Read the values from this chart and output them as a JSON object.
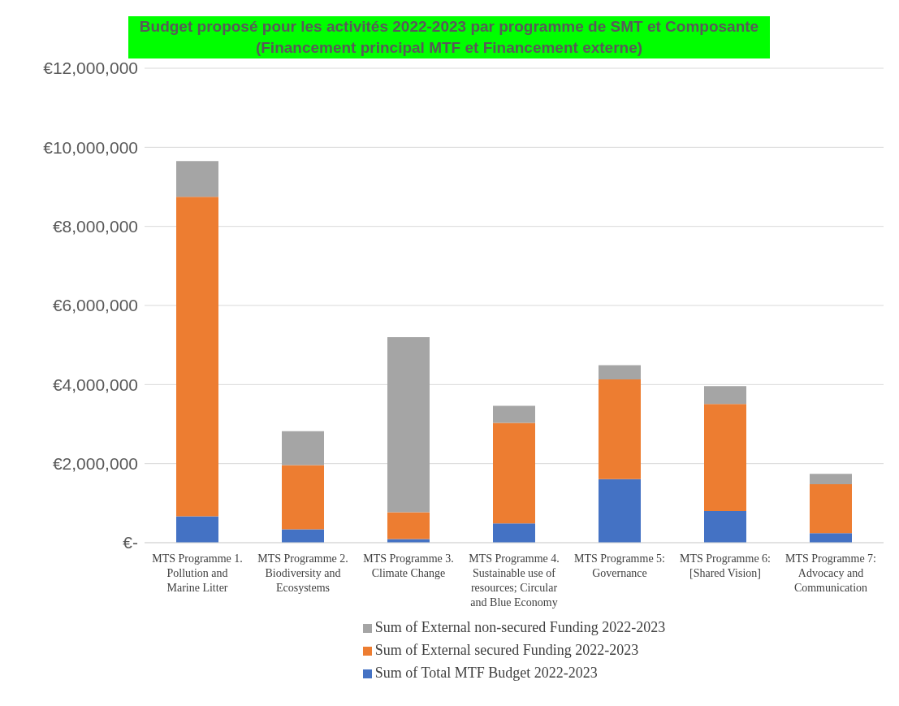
{
  "chart_data": {
    "type": "bar",
    "stacked": true,
    "title": "Budget proposé pour les activités 2022-2023 par programme de SMT et Composante (Financement  principal MTF et Financement externe)",
    "categories": [
      "MTS Programme 1. Pollution and Marine Litter",
      "MTS Programme 2. Biodiversity and Ecosystems",
      "MTS Programme 3. Climate Change",
      "MTS Programme 4. Sustainable use of resources; Circular and Blue Economy",
      "MTS Programme 5: Governance",
      "MTS Programme 6: [Shared Vision]",
      "MTS Programme 7: Advocacy and Communication"
    ],
    "series": [
      {
        "name": "Sum of Total MTF Budget 2022-2023",
        "color": "#4472c4",
        "values": [
          670000,
          340000,
          90000,
          490000,
          1610000,
          800000,
          240000
        ]
      },
      {
        "name": "Sum of External secured Funding 2022-2023",
        "color": "#ed7d31",
        "values": [
          8080000,
          1620000,
          680000,
          2540000,
          2520000,
          2710000,
          1240000
        ]
      },
      {
        "name": "Sum of External non-secured Funding 2022-2023",
        "color": "#a5a5a5",
        "values": [
          900000,
          860000,
          4430000,
          430000,
          360000,
          450000,
          260000
        ]
      }
    ],
    "ylim": [
      0,
      12000000
    ],
    "yticks": [
      {
        "value": 0,
        "label": "€-"
      },
      {
        "value": 2000000,
        "label": "€2,000,000"
      },
      {
        "value": 4000000,
        "label": "€4,000,000"
      },
      {
        "value": 6000000,
        "label": "€6,000,000"
      },
      {
        "value": 8000000,
        "label": "€8,000,000"
      },
      {
        "value": 10000000,
        "label": "€10,000,000"
      },
      {
        "value": 12000000,
        "label": "€12,000,000"
      }
    ],
    "grid": "y",
    "legend": "bottom"
  }
}
